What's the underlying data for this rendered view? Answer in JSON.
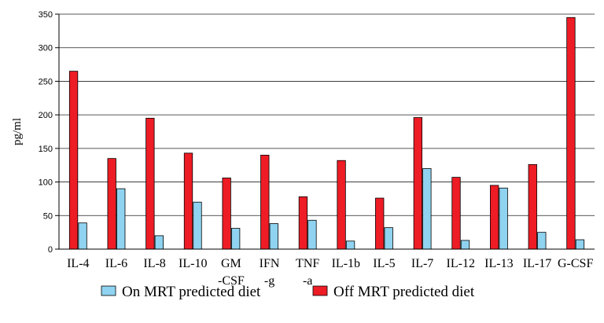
{
  "chart_data": {
    "type": "bar",
    "ylabel": "pg/ml",
    "xlabel": "",
    "ylim": [
      0,
      350
    ],
    "yticks": [
      0,
      50,
      100,
      150,
      200,
      250,
      300,
      350
    ],
    "grid": "horizontal",
    "legend_position": "bottom",
    "categories": [
      [
        "IL-4"
      ],
      [
        "IL-6"
      ],
      [
        "IL-8"
      ],
      [
        "IL-10"
      ],
      [
        "GM",
        "-CSF"
      ],
      [
        "IFN",
        "-g"
      ],
      [
        "TNF",
        "-a"
      ],
      [
        "IL-1b"
      ],
      [
        "IL-5"
      ],
      [
        "IL-7"
      ],
      [
        "IL-12"
      ],
      [
        "IL-13"
      ],
      [
        "IL-17"
      ],
      [
        "G-CSF"
      ]
    ],
    "series": [
      {
        "name": "Off MRT predicted diet",
        "color": "#ee1c25",
        "values": [
          265,
          135,
          195,
          143,
          106,
          140,
          78,
          132,
          76,
          196,
          107,
          95,
          126,
          345
        ]
      },
      {
        "name": "On MRT predicted diet",
        "color": "#8fd3f0",
        "values": [
          39,
          90,
          20,
          70,
          31,
          38,
          43,
          12,
          32,
          120,
          13,
          91,
          25,
          14
        ]
      }
    ],
    "legend_order": [
      1,
      0
    ]
  }
}
